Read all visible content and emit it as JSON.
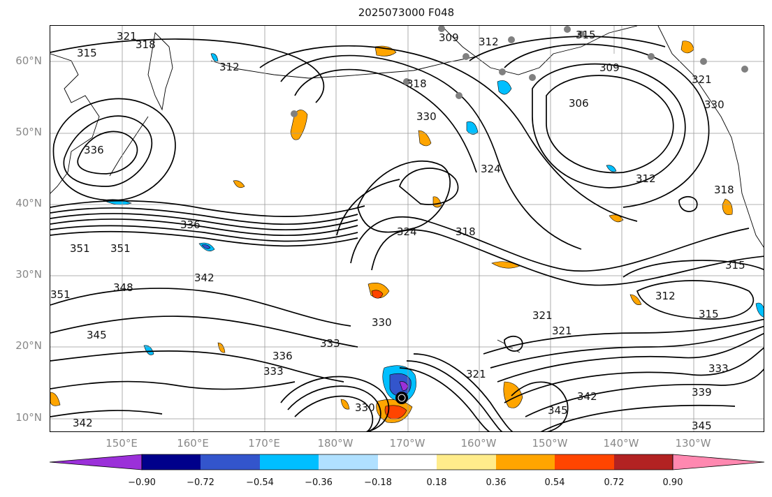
{
  "title": "2025073000 F048",
  "latitude_labels": [
    "60°N",
    "50°N",
    "40°N",
    "30°N",
    "20°N",
    "10°N"
  ],
  "longitude_labels": [
    "150°E",
    "160°E",
    "170°E",
    "180°W",
    "170°W",
    "160°W",
    "150°W",
    "140°W",
    "130°W"
  ],
  "colorbar": {
    "ticks": [
      "−0.90",
      "−0.72",
      "−0.54",
      "−0.36",
      "−0.18",
      "0.18",
      "0.36",
      "0.54",
      "0.72",
      "0.90"
    ],
    "colors": [
      "#9b30d9",
      "#00008b",
      "#3355cc",
      "#00bfff",
      "#b0e0ff",
      "#ffffff",
      "#ffec8b",
      "#ffa500",
      "#ff4500",
      "#b22222",
      "#ff88b0"
    ],
    "extend": "both"
  },
  "contour_labels": [
    "321",
    "318",
    "315",
    "312",
    "309",
    "315",
    "312",
    "306",
    "309",
    "336",
    "330",
    "324",
    "318",
    "312",
    "321",
    "330",
    "318",
    "336",
    "351",
    "351",
    "342",
    "348",
    "324",
    "318",
    "312",
    "315",
    "315",
    "351",
    "345",
    "330",
    "333",
    "336",
    "333",
    "321",
    "321",
    "321",
    "333",
    "339",
    "345",
    "342",
    "345",
    "342",
    "330"
  ],
  "colors": {
    "contour": "#000000",
    "grid": "#999999",
    "coast": "#000000",
    "low_marker": "#000000",
    "station": "#808080"
  }
}
